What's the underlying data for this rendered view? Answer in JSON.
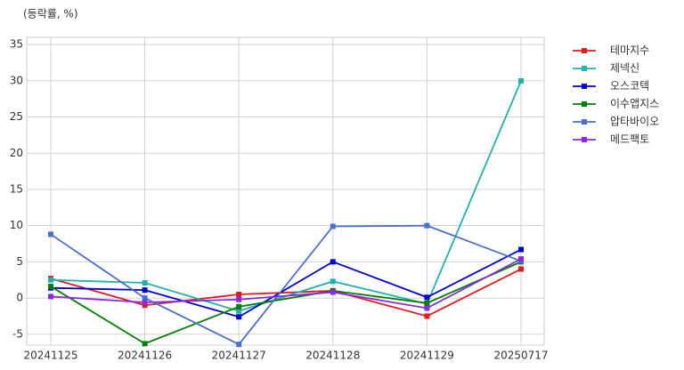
{
  "chart_data": {
    "type": "line",
    "title": "(등락률, %)",
    "categories": [
      "20241125",
      "20241126",
      "20241127",
      "20241128",
      "20241129",
      "20250717"
    ],
    "series": [
      {
        "name": "테마지수",
        "color": "#e31a1c",
        "values": [
          2.7,
          -1.0,
          0.5,
          1.0,
          -2.5,
          4.0
        ]
      },
      {
        "name": "제넥신",
        "color": "#20b2aa",
        "values": [
          2.5,
          2.1,
          -1.8,
          2.3,
          -0.8,
          30.0
        ]
      },
      {
        "name": "오스코텍",
        "color": "#0000cd",
        "values": [
          1.4,
          1.1,
          -2.6,
          5.0,
          0.1,
          6.7
        ]
      },
      {
        "name": "이수앱지스",
        "color": "#008000",
        "values": [
          1.6,
          -6.3,
          -1.2,
          1.0,
          -0.7,
          5.0
        ]
      },
      {
        "name": "압타바이오",
        "color": "#4a6fd0",
        "values": [
          8.8,
          0.0,
          -6.4,
          9.9,
          10.0,
          5.1
        ]
      },
      {
        "name": "메드팩토",
        "color": "#8a2be2",
        "values": [
          0.2,
          -0.6,
          -0.2,
          0.8,
          -1.4,
          5.4
        ]
      }
    ],
    "ylim": [
      -6.5,
      36
    ],
    "yticks": [
      -5,
      0,
      5,
      10,
      15,
      20,
      25,
      30,
      35
    ],
    "grid": true,
    "legend": "outside-right"
  }
}
